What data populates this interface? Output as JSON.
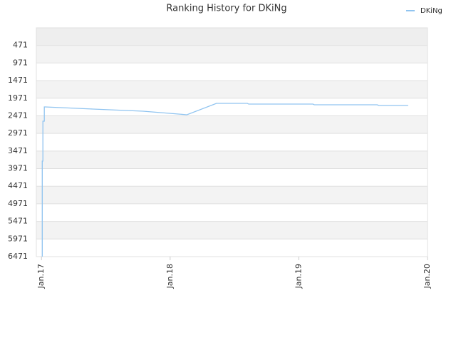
{
  "chart_data": {
    "type": "line",
    "title": "Ranking History for DKiNg",
    "x": [
      2017.006,
      2017.006,
      2017.011,
      2017.011,
      2017.022,
      2017.022,
      2017.028,
      2017.4,
      2017.79,
      2018.13,
      2018.36,
      2018.6,
      2018.61,
      2019.11,
      2019.12,
      2019.61,
      2019.62,
      2019.85
    ],
    "series": [
      {
        "name": "DKiNg",
        "color": "#90c4f0",
        "values": [
          6471,
          3758,
          3758,
          2624,
          2624,
          2219,
          2219,
          2279,
          2340,
          2441,
          2117,
          2117,
          2138,
          2138,
          2158,
          2158,
          2178,
          2178
        ]
      }
    ],
    "xlim": [
      2016.96,
      2020
    ],
    "xticks": [
      {
        "value": 2017,
        "label": "Jan.17"
      },
      {
        "value": 2018,
        "label": "Jan.18"
      },
      {
        "value": 2019,
        "label": "Jan.19"
      },
      {
        "value": 2020,
        "label": "Jan.20"
      }
    ],
    "ylim": [
      -29,
      6471
    ],
    "y_inverted": true,
    "yticks": [
      471,
      971,
      1471,
      1971,
      2471,
      2971,
      3471,
      3971,
      4471,
      4971,
      5471,
      5971,
      6471
    ],
    "legend": "top-right",
    "grid": true
  }
}
